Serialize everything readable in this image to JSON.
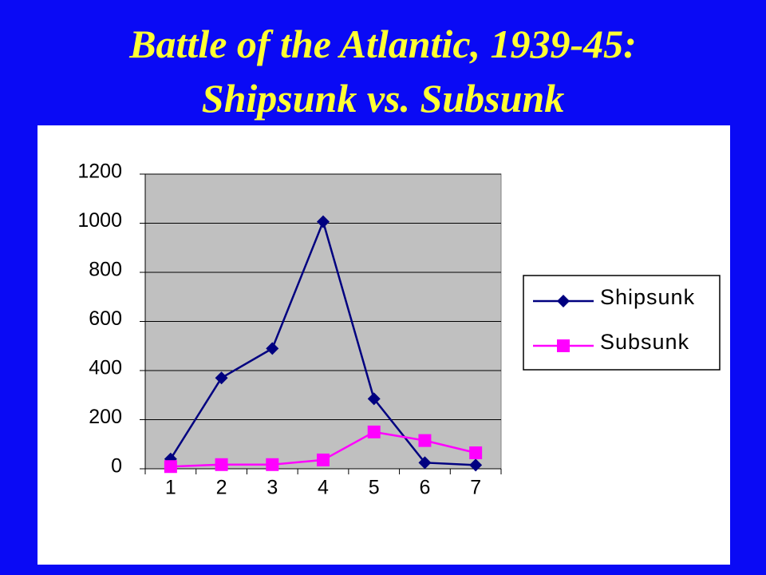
{
  "chart_data": {
    "type": "line",
    "title": [
      "Battle of the Atlantic, 1939-45:",
      "Shipsunk vs. Subsunk"
    ],
    "categories": [
      "1",
      "2",
      "3",
      "4",
      "5",
      "6",
      "7"
    ],
    "series": [
      {
        "name": "Shipsunk",
        "color": "#000080",
        "marker": "diamond",
        "values": [
          40,
          370,
          490,
          1006,
          285,
          25,
          15
        ]
      },
      {
        "name": "Subsunk",
        "color": "#ff00ff",
        "marker": "square",
        "values": [
          9,
          17,
          17,
          36,
          150,
          115,
          65
        ]
      }
    ],
    "ylim": [
      0,
      1200
    ],
    "yticks": [
      0,
      200,
      400,
      600,
      800,
      1000,
      1200
    ],
    "grid": true,
    "legend": "right"
  }
}
